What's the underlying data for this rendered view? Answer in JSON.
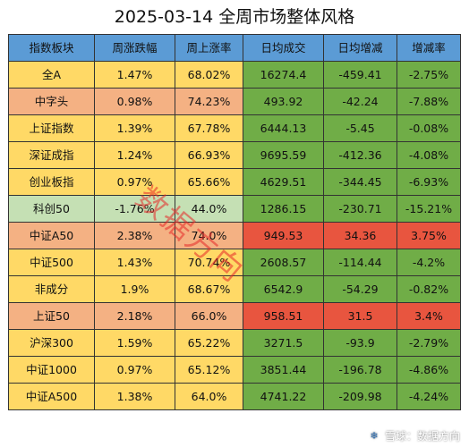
{
  "title": "2025-03-14  全周市场整体风格",
  "table": {
    "headers": [
      "指数板块",
      "周涨跌幅",
      "周上涨率",
      "日均成交",
      "日均增减",
      "增减率"
    ],
    "rows": [
      [
        "全A",
        "1.47%",
        "68.02%",
        "16274.4",
        "-459.41",
        "-2.75%"
      ],
      [
        "中字头",
        "0.98%",
        "74.23%",
        "493.92",
        "-42.24",
        "-7.88%"
      ],
      [
        "上证指数",
        "1.39%",
        "67.78%",
        "6444.13",
        "-5.45",
        "-0.08%"
      ],
      [
        "深证成指",
        "1.24%",
        "66.93%",
        "9695.59",
        "-412.36",
        "-4.08%"
      ],
      [
        "创业板指",
        "0.97%",
        "65.66%",
        "4629.51",
        "-344.45",
        "-6.93%"
      ],
      [
        "科创50",
        "-1.76%",
        "44.0%",
        "1286.15",
        "-230.71",
        "-15.21%"
      ],
      [
        "中证A50",
        "2.38%",
        "74.0%",
        "949.53",
        "34.36",
        "3.75%"
      ],
      [
        "中证500",
        "1.43%",
        "70.74%",
        "2608.57",
        "-114.44",
        "-4.2%"
      ],
      [
        "非成分",
        "1.9%",
        "68.67%",
        "6542.9",
        "-54.29",
        "-0.82%"
      ],
      [
        "上证50",
        "2.18%",
        "66.0%",
        "958.51",
        "31.5",
        "3.4%"
      ],
      [
        "沪深300",
        "1.59%",
        "65.22%",
        "3271.5",
        "-93.9",
        "-2.79%"
      ],
      [
        "中证1000",
        "0.97%",
        "65.12%",
        "3851.44",
        "-196.78",
        "-4.86%"
      ],
      [
        "中证A500",
        "1.38%",
        "64.0%",
        "4741.22",
        "-209.98",
        "-4.24%"
      ]
    ],
    "row_colors": [
      "#ffd966",
      "#f4b183",
      "#ffd966",
      "#ffd966",
      "#ffd966",
      "#c5e0b4",
      "#f4b183",
      "#ffd966",
      "#ffd966",
      "#f4b183",
      "#ffd966",
      "#ffd966",
      "#ffd966"
    ],
    "change_colors": [
      "#70ad47",
      "#70ad47",
      "#70ad47",
      "#70ad47",
      "#70ad47",
      "#70ad47",
      "#e8553f",
      "#70ad47",
      "#70ad47",
      "#e8553f",
      "#70ad47",
      "#70ad47",
      "#70ad47"
    ],
    "header_color": "#5b9bd5"
  },
  "watermark": "数据方向",
  "footer": {
    "icon": "snowball-icon",
    "text": "雪球：数据方向"
  }
}
